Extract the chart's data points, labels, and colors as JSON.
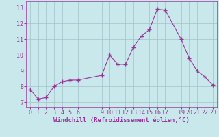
{
  "x": [
    0,
    1,
    2,
    3,
    4,
    5,
    6,
    9,
    10,
    11,
    12,
    13,
    14,
    15,
    16,
    17,
    19,
    20,
    21,
    22,
    23
  ],
  "y": [
    7.8,
    7.2,
    7.3,
    8.0,
    8.3,
    8.4,
    8.4,
    8.7,
    10.0,
    9.4,
    9.4,
    10.5,
    11.2,
    11.6,
    12.9,
    12.85,
    11.0,
    9.8,
    9.0,
    8.6,
    8.1
  ],
  "line_color": "#993399",
  "marker_color": "#993399",
  "bg_color": "#c8e8ec",
  "grid_color": "#a0c4c8",
  "xlabel": "Windchill (Refroidissement éolien,°C)",
  "xticks": [
    0,
    1,
    2,
    3,
    4,
    5,
    6,
    9,
    10,
    11,
    12,
    13,
    14,
    15,
    16,
    17,
    19,
    20,
    21,
    22,
    23
  ],
  "yticks": [
    7,
    8,
    9,
    10,
    11,
    12,
    13
  ],
  "ylim": [
    6.7,
    13.4
  ],
  "xlim": [
    -0.5,
    23.5
  ],
  "title_fontsize": 7,
  "tick_fontsize": 6,
  "xlabel_fontsize": 6.5
}
